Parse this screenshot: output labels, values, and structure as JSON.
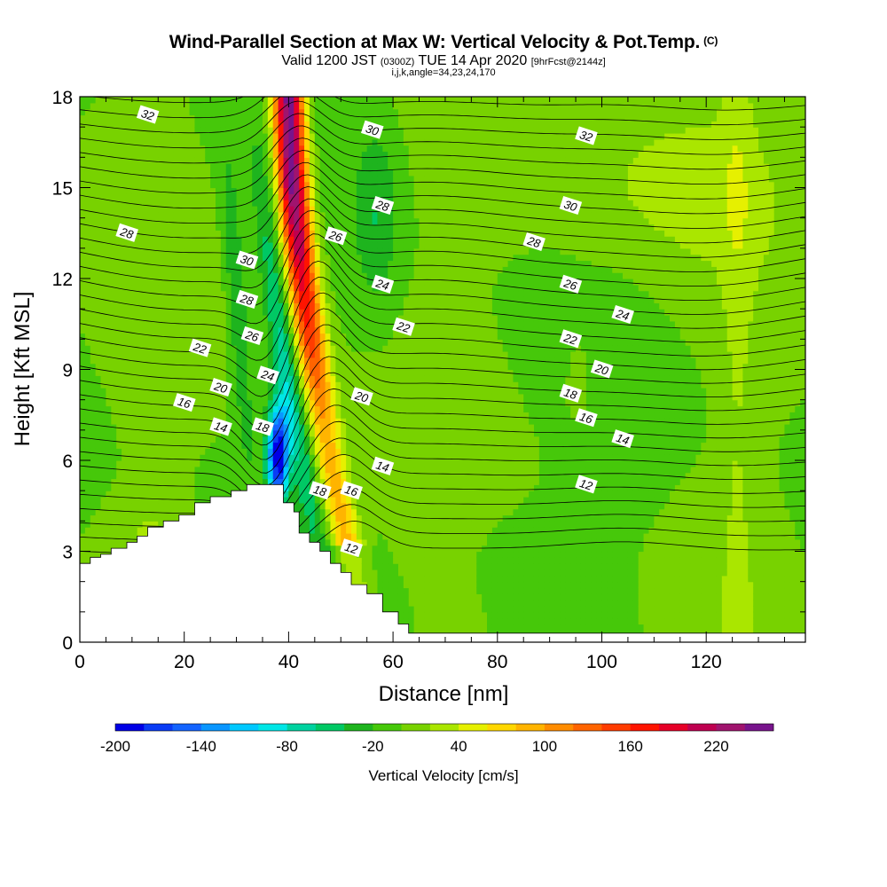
{
  "title": {
    "main": "Wind-Parallel Section at Max W: Vertical Velocity & Pot.Temp.",
    "copyright": "(C)",
    "valid_prefix": "Valid 1200 JST",
    "valid_z": "(0300Z)",
    "valid_date": "TUE 14 Apr 2020",
    "forecast": "[9hrFcst@2144z]",
    "indices": "i,j,k,angle=34,23,24,170"
  },
  "chart_data": {
    "type": "heatmap",
    "xlabel": "Distance [nm]",
    "ylabel": "Height [Kft MSL]",
    "xlim": [
      0,
      139
    ],
    "ylim": [
      0,
      18
    ],
    "x_ticks": [
      0,
      20,
      40,
      60,
      80,
      100,
      120
    ],
    "y_ticks": [
      0,
      3,
      6,
      9,
      12,
      15,
      18
    ],
    "colorbar": {
      "title": "Vertical Velocity [cm/s]",
      "levels": [
        -200,
        -180,
        -160,
        -140,
        -120,
        -100,
        -80,
        -60,
        -40,
        -20,
        0,
        20,
        40,
        60,
        80,
        100,
        120,
        140,
        160,
        180,
        200,
        220,
        240,
        260
      ],
      "tick_labels": [
        "-200",
        "-140",
        "-80",
        "-20",
        "40",
        "100",
        "160",
        "220"
      ],
      "colors": [
        "#0000e6",
        "#0a3cf5",
        "#1464ff",
        "#0a96ff",
        "#00c8ff",
        "#00e6e6",
        "#00d2a0",
        "#00c864",
        "#1eb41e",
        "#46c80a",
        "#78d200",
        "#aae600",
        "#e6f000",
        "#ffd700",
        "#ffb400",
        "#ff8c00",
        "#ff6400",
        "#ff3c00",
        "#ff1400",
        "#e60028",
        "#be0050",
        "#a0146e",
        "#78148c"
      ]
    },
    "terrain_profile": [
      [
        0,
        2.6
      ],
      [
        2,
        2.8
      ],
      [
        4,
        2.9
      ],
      [
        6,
        3.1
      ],
      [
        9,
        3.3
      ],
      [
        11,
        3.5
      ],
      [
        13,
        3.8
      ],
      [
        16,
        4.0
      ],
      [
        19,
        4.2
      ],
      [
        22,
        4.6
      ],
      [
        25,
        4.8
      ],
      [
        29,
        5.0
      ],
      [
        32,
        5.2
      ],
      [
        35,
        5.2
      ],
      [
        38,
        5.2
      ],
      [
        39,
        4.6
      ],
      [
        41,
        4.3
      ],
      [
        42,
        3.6
      ],
      [
        44,
        3.3
      ],
      [
        46,
        3.0
      ],
      [
        48,
        2.6
      ],
      [
        50,
        2.3
      ],
      [
        52,
        1.9
      ],
      [
        55,
        1.6
      ],
      [
        58,
        1.0
      ],
      [
        61,
        0.6
      ],
      [
        63,
        0.3
      ],
      [
        139,
        0.3
      ]
    ],
    "updraft_core": {
      "x_at_top": 40,
      "x_at_mid": 48,
      "max_cm_s": 260
    },
    "downdraft_core": {
      "x": 38,
      "height_kft": 6.2,
      "min_cm_s": -200
    },
    "potential_temperature_labels": [
      {
        "text": "32",
        "x": 13,
        "y": 17.4
      },
      {
        "text": "30",
        "x": 56,
        "y": 16.9
      },
      {
        "text": "32",
        "x": 97,
        "y": 16.7
      },
      {
        "text": "28",
        "x": 58,
        "y": 14.4
      },
      {
        "text": "30",
        "x": 94,
        "y": 14.4
      },
      {
        "text": "28",
        "x": 9,
        "y": 13.5
      },
      {
        "text": "26",
        "x": 49,
        "y": 13.4
      },
      {
        "text": "28",
        "x": 87,
        "y": 13.2
      },
      {
        "text": "30",
        "x": 32,
        "y": 12.6
      },
      {
        "text": "24",
        "x": 58,
        "y": 11.8
      },
      {
        "text": "26",
        "x": 94,
        "y": 11.8
      },
      {
        "text": "28",
        "x": 32,
        "y": 11.3
      },
      {
        "text": "24",
        "x": 104,
        "y": 10.8
      },
      {
        "text": "22",
        "x": 62,
        "y": 10.4
      },
      {
        "text": "26",
        "x": 33,
        "y": 10.1
      },
      {
        "text": "22",
        "x": 94,
        "y": 10.0
      },
      {
        "text": "22",
        "x": 23,
        "y": 9.7
      },
      {
        "text": "20",
        "x": 100,
        "y": 9.0
      },
      {
        "text": "24",
        "x": 36,
        "y": 8.8
      },
      {
        "text": "20",
        "x": 27,
        "y": 8.4
      },
      {
        "text": "20",
        "x": 54,
        "y": 8.1
      },
      {
        "text": "18",
        "x": 94,
        "y": 8.2
      },
      {
        "text": "16",
        "x": 20,
        "y": 7.9
      },
      {
        "text": "16",
        "x": 97,
        "y": 7.4
      },
      {
        "text": "14",
        "x": 27,
        "y": 7.1
      },
      {
        "text": "18",
        "x": 35,
        "y": 7.1
      },
      {
        "text": "14",
        "x": 104,
        "y": 6.7
      },
      {
        "text": "14",
        "x": 58,
        "y": 5.8
      },
      {
        "text": "18",
        "x": 46,
        "y": 5.0
      },
      {
        "text": "16",
        "x": 52,
        "y": 5.0
      },
      {
        "text": "12",
        "x": 97,
        "y": 5.2
      },
      {
        "text": "12",
        "x": 52,
        "y": 3.1
      }
    ]
  }
}
